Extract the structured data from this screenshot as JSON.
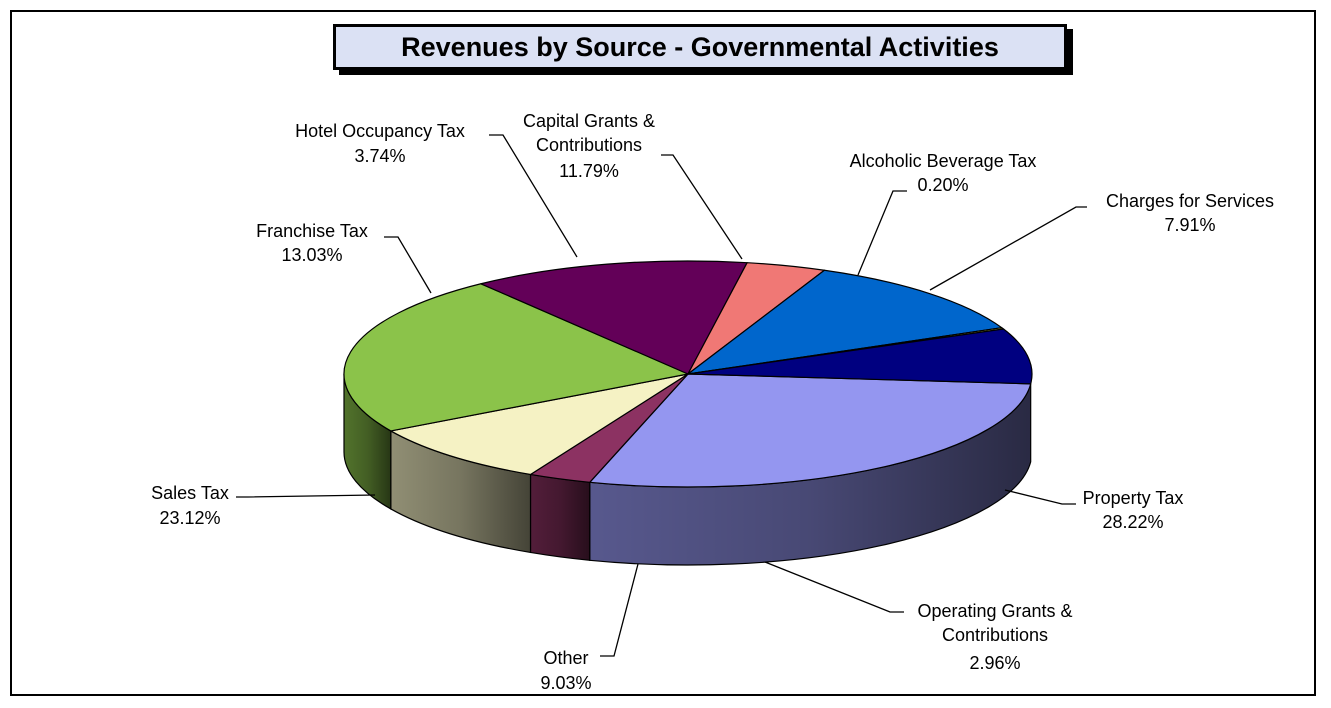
{
  "chart_data": {
    "type": "pie",
    "variant": "3d",
    "title": "Revenues by Source - Governmental Activities",
    "slices": [
      {
        "name": "Property Tax",
        "value": 28.22,
        "pct_label": "28.22%",
        "color": "#9496f0"
      },
      {
        "name": "Operating Grants & Contributions",
        "value": 2.96,
        "pct_label": "2.96%",
        "color": "#8c3262"
      },
      {
        "name": "Other",
        "value": 9.03,
        "pct_label": "9.03%",
        "color": "#f5f2c4"
      },
      {
        "name": "Sales Tax",
        "value": 23.12,
        "pct_label": "23.12%",
        "color": "#8bc34a"
      },
      {
        "name": "Franchise Tax",
        "value": 13.03,
        "pct_label": "13.03%",
        "color": "#630058"
      },
      {
        "name": "Hotel Occupancy Tax",
        "value": 3.74,
        "pct_label": "3.74%",
        "color": "#f07875"
      },
      {
        "name": "Capital Grants & Contributions",
        "value": 11.79,
        "pct_label": "11.79%",
        "color": "#0066cc"
      },
      {
        "name": "Alcoholic Beverage Tax",
        "value": 0.2,
        "pct_label": "0.20%",
        "color": "#c8cc3a"
      },
      {
        "name": "Charges for Services",
        "value": 7.91,
        "pct_label": "7.91%",
        "color": "#000080"
      }
    ],
    "legend": "none",
    "labels": "outside with leader lines"
  }
}
